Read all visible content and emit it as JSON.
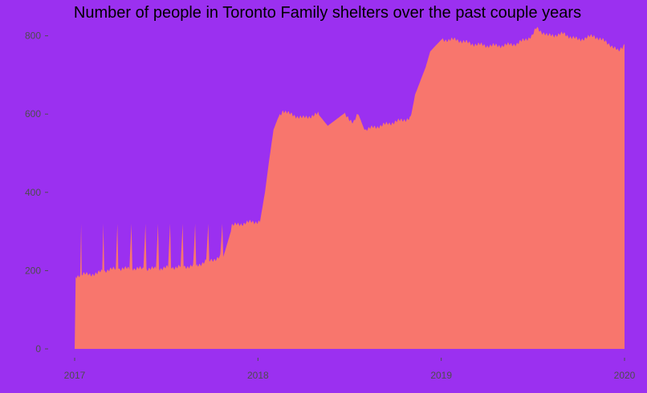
{
  "colors": {
    "background": "#9b30f0",
    "area_fill": "#f8766d",
    "text": "#000000",
    "axis_text": "#4d4d4d"
  },
  "chart_data": {
    "type": "area",
    "title": "Number of people in Toronto Family shelters over the past couple years",
    "xlabel": "",
    "ylabel": "",
    "x_ticks": [
      "2017",
      "2018",
      "2019",
      "2020"
    ],
    "y_ticks": [
      0,
      200,
      400,
      600,
      800
    ],
    "xlim": [
      "2017-01-01",
      "2020-01-01"
    ],
    "ylim": [
      0,
      830
    ],
    "grid": false,
    "legend": "none",
    "series": [
      {
        "x": [
          "2017-01-01",
          "2017-01-03",
          "2017-01-12",
          "2017-01-14",
          "2017-01-15",
          "2017-02-15",
          "2017-02-25",
          "2017-02-27",
          "2017-03-01",
          "2017-03-24",
          "2017-03-27",
          "2017-03-29",
          "2017-04-20",
          "2017-04-24",
          "2017-04-26",
          "2017-05-18",
          "2017-05-22",
          "2017-05-24",
          "2017-06-12",
          "2017-06-16",
          "2017-06-18",
          "2017-07-06",
          "2017-07-10",
          "2017-07-12",
          "2017-07-31",
          "2017-08-04",
          "2017-08-06",
          "2017-08-25",
          "2017-08-29",
          "2017-08-31",
          "2017-09-20",
          "2017-09-24",
          "2017-09-26",
          "2017-10-18",
          "2017-10-22",
          "2017-10-24",
          "2017-11-08",
          "2017-11-10",
          "2017-11-30",
          "2017-12-02",
          "2017-12-20",
          "2018-01-05",
          "2018-01-15",
          "2018-01-22",
          "2018-02-01",
          "2018-02-10",
          "2018-02-20",
          "2018-03-05",
          "2018-04-01",
          "2018-05-01",
          "2018-05-20",
          "2018-06-20",
          "2018-07-10",
          "2018-07-20",
          "2018-08-01",
          "2018-09-01",
          "2018-10-01",
          "2018-11-01",
          "2018-11-10",
          "2018-12-01",
          "2018-12-10",
          "2019-01-01",
          "2019-02-01",
          "2019-03-01",
          "2019-04-01",
          "2019-05-01",
          "2019-06-01",
          "2019-07-01",
          "2019-07-10",
          "2019-08-01",
          "2019-09-01",
          "2019-10-01",
          "2019-11-01",
          "2019-12-01",
          "2019-12-20",
          "2020-01-01"
        ],
        "values": [
          0,
          185,
          190,
          320,
          190,
          192,
          200,
          320,
          200,
          205,
          320,
          205,
          205,
          320,
          205,
          205,
          320,
          205,
          205,
          320,
          205,
          208,
          320,
          208,
          210,
          320,
          210,
          212,
          320,
          212,
          225,
          320,
          225,
          235,
          320,
          235,
          300,
          315,
          320,
          320,
          325,
          325,
          400,
          470,
          560,
          590,
          610,
          600,
          590,
          600,
          570,
          600,
          580,
          600,
          560,
          570,
          580,
          590,
          650,
          720,
          760,
          790,
          790,
          780,
          775,
          775,
          780,
          800,
          820,
          800,
          805,
          790,
          800,
          780,
          760,
          780
        ]
      }
    ]
  }
}
